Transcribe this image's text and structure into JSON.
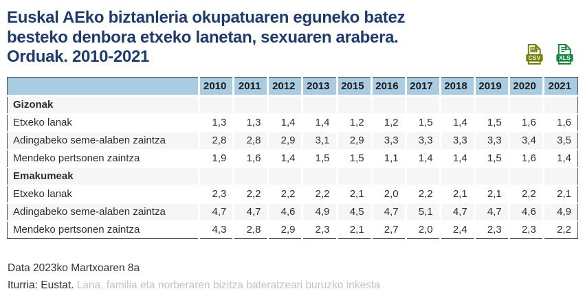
{
  "page": {
    "title_lines": [
      "Euskal AEko biztanleria okupatuaren eguneko batez",
      "besteko denbora etxeko lanetan, sexuaren arabera.",
      "Orduak. 2010-2021"
    ],
    "export_buttons": [
      {
        "icon": "csv-file-icon",
        "label": "CSV",
        "color": "#6e7f00"
      },
      {
        "icon": "xls-file-icon",
        "label": "XLS",
        "color": "#168442"
      }
    ],
    "footer": {
      "date_line": "Data 2023ko Martxoaren 8a",
      "source_label": "Iturria: Eustat.",
      "source_link_text": "Lana, familia eta norberaren bizitza bateratzeari buruzko inkesta"
    }
  },
  "chart_data": {
    "type": "table",
    "title": "Euskal AEko biztanleria okupatuaren eguneko batez besteko denbora etxeko lanetan, sexuaren arabera. Orduak. 2010-2021",
    "columns": [
      "2010",
      "2011",
      "2012",
      "2013",
      "2015",
      "2016",
      "2017",
      "2018",
      "2019",
      "2020",
      "2021"
    ],
    "sections": [
      {
        "label": "Gizonak",
        "rows": [
          {
            "label": "Etxeko lanak",
            "values": [
              "1,3",
              "1,3",
              "1,4",
              "1,4",
              "1,2",
              "1,2",
              "1,5",
              "1,4",
              "1,5",
              "1,6",
              "1,6"
            ]
          },
          {
            "label": "Adingabeko seme-alaben zaintza",
            "values": [
              "2,8",
              "2,8",
              "2,9",
              "3,1",
              "2,9",
              "3,3",
              "3,3",
              "3,3",
              "3,3",
              "3,4",
              "3,5"
            ]
          },
          {
            "label": "Mendeko pertsonen zaintza",
            "values": [
              "1,9",
              "1,6",
              "1,4",
              "1,5",
              "1,5",
              "1,1",
              "1,4",
              "1,4",
              "1,5",
              "1,6",
              "1,4"
            ]
          }
        ]
      },
      {
        "label": "Emakumeak",
        "rows": [
          {
            "label": "Etxeko lanak",
            "values": [
              "2,3",
              "2,2",
              "2,2",
              "2,2",
              "2,1",
              "2,0",
              "2,2",
              "2,1",
              "2,1",
              "2,2",
              "2,1"
            ]
          },
          {
            "label": "Adingabeko seme-alaben zaintza",
            "values": [
              "4,7",
              "4,7",
              "4,6",
              "4,9",
              "4,5",
              "4,7",
              "5,1",
              "4,7",
              "4,7",
              "4,6",
              "4,9"
            ]
          },
          {
            "label": "Mendeko pertsonen zaintza",
            "values": [
              "4,3",
              "2,8",
              "2,9",
              "2,3",
              "2,1",
              "2,7",
              "2,0",
              "2,4",
              "2,3",
              "2,3",
              "2,2"
            ]
          }
        ]
      }
    ]
  },
  "colors": {
    "title_text": "#1e3a6e",
    "header_bg": "#a9cce3",
    "row_stripe": "#f6f6f6",
    "table_border": "#4d4d4d",
    "body_text": "#2e2e2e",
    "muted_link": "#c3c3c3",
    "csv_icon": "#6e7f00",
    "xls_icon": "#168442"
  }
}
